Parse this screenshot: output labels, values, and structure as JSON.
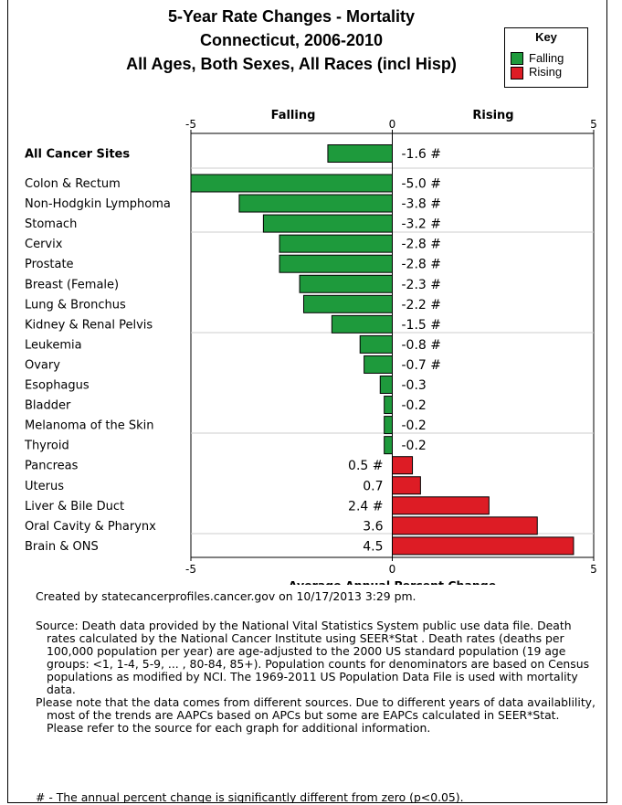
{
  "header": {
    "title_line1": "5-Year Rate Changes - Mortality",
    "title_line2": "Connecticut, 2006-2010",
    "title_line3": "All Ages, Both Sexes, All Races (incl Hisp)"
  },
  "key": {
    "title": "Key",
    "falling_label": "Falling",
    "rising_label": "Rising",
    "falling_color": "#1e9a3c",
    "rising_color": "#dd1c25"
  },
  "chart_data": {
    "type": "bar",
    "orientation": "horizontal",
    "xlabel": "Average Annual Percent Change",
    "xlim": [
      -5,
      5
    ],
    "ticks": [
      "-5",
      "0",
      "5"
    ],
    "top_labels": {
      "left": "Falling",
      "right": "Rising"
    },
    "summary": {
      "category": "All Cancer Sites",
      "value": -1.6,
      "label": "-1.6 #"
    },
    "categories": [
      "Colon & Rectum",
      "Non-Hodgkin Lymphoma",
      "Stomach",
      "Cervix",
      "Prostate",
      "Breast (Female)",
      "Lung & Bronchus",
      "Kidney & Renal Pelvis",
      "Leukemia",
      "Ovary",
      "Esophagus",
      "Bladder",
      "Melanoma of the Skin",
      "Thyroid",
      "Pancreas",
      "Uterus",
      "Liver & Bile Duct",
      "Oral Cavity & Pharynx",
      "Brain & ONS"
    ],
    "values": [
      -5.0,
      -3.8,
      -3.2,
      -2.8,
      -2.8,
      -2.3,
      -2.2,
      -1.5,
      -0.8,
      -0.7,
      -0.3,
      -0.2,
      -0.2,
      -0.2,
      0.5,
      0.7,
      2.4,
      3.6,
      4.5
    ],
    "value_labels": [
      "-5.0 #",
      "-3.8 #",
      "-3.2 #",
      "-2.8 #",
      "-2.8 #",
      "-2.3 #",
      "-2.2 #",
      "-1.5 #",
      "-0.8 #",
      "-0.7 #",
      "-0.3",
      "-0.2",
      "-0.2",
      "-0.2",
      "0.5 #",
      "0.7",
      "2.4 #",
      "3.6",
      "4.5"
    ]
  },
  "notes": {
    "created": "Created by statecancerprofiles.cancer.gov on 10/17/2013 3:29 pm.",
    "source": "Source: Death data provided by the  National Vital Statistics System public use data file. Death rates calculated by the National Cancer Institute using SEER*Stat . Death rates (deaths per 100,000 population per year) are age-adjusted to the 2000 US standard population (19 age groups: <1, 1-4, 5-9, ... , 80-84, 85+). Population counts for denominators are based on Census populations as modified by NCI. The 1969-2011 US Population Data File is used with mortality data.",
    "note": "Please note that the data comes from different sources. Due to different years of data availablility, most of the trends are AAPCs based on APCs but some are EAPCs calculated in SEER*Stat. Please refer to the source for each graph for additional information.",
    "significance": "# - The annual percent change is significantly different from zero (p<0.05)."
  }
}
